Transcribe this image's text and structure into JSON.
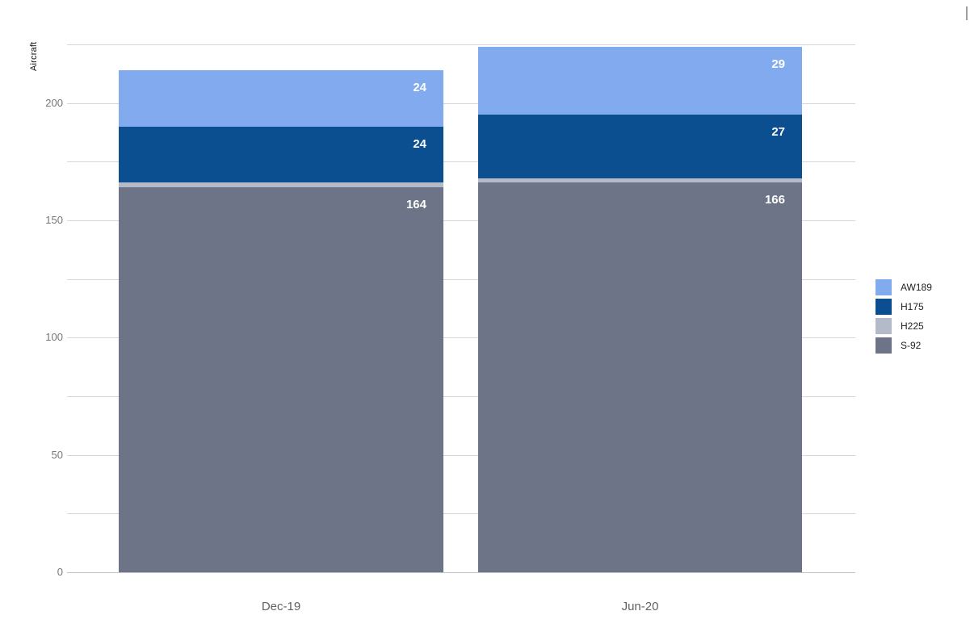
{
  "chart_data": {
    "type": "bar",
    "stacked": true,
    "title": "",
    "xlabel": "",
    "ylabel": "Aircraft",
    "categories": [
      "Dec-19",
      "Jun-20"
    ],
    "series": [
      {
        "name": "S-92",
        "color": "#6E7487",
        "values": [
          164,
          166
        ],
        "data_labels": [
          "164",
          "166"
        ]
      },
      {
        "name": "H225",
        "color": "#B4BAC8",
        "values": [
          2,
          2
        ],
        "data_labels": [
          "",
          ""
        ]
      },
      {
        "name": "H175",
        "color": "#0B4F90",
        "values": [
          24,
          27
        ],
        "data_labels": [
          "24",
          "27"
        ]
      },
      {
        "name": "AW189",
        "color": "#82AAEE",
        "values": [
          24,
          29
        ],
        "data_labels": [
          "24",
          "29"
        ]
      }
    ],
    "totals": [
      214,
      224
    ],
    "legend": {
      "position": "right",
      "entries": [
        "AW189",
        "H175",
        "H225",
        "S-92"
      ]
    },
    "ylim": [
      0,
      225
    ],
    "grid_step": 25,
    "tick_step": 50,
    "y_tick_labels": [
      "0",
      "50",
      "100",
      "150",
      "200"
    ],
    "grid_on": true,
    "value_label_color": "#FFFFFF"
  },
  "decorations": {
    "scrollbar_fragment_color": "#9E9E9E"
  }
}
